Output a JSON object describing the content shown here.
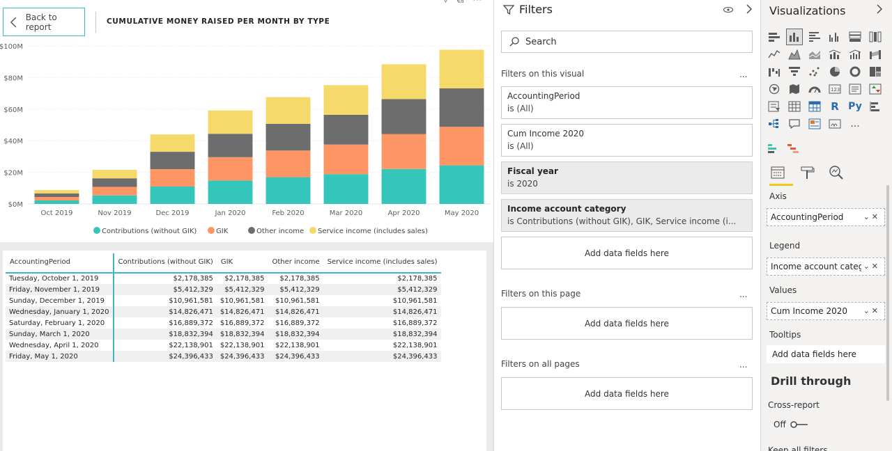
{
  "report": {
    "back_label": "Back to report",
    "chart_title": "CUMULATIVE MONEY RAISED PER MONTH BY TYPE"
  },
  "chart_data": {
    "type": "bar",
    "stacked": true,
    "title": "CUMULATIVE MONEY RAISED PER MONTH BY TYPE",
    "categories": [
      "Oct 2019",
      "Nov 2019",
      "Dec 2019",
      "Jan 2020",
      "Feb 2020",
      "Mar 2020",
      "Apr 2020",
      "May 2020"
    ],
    "y_ticks": [
      "$0M",
      "$20M",
      "$40M",
      "$60M",
      "$80M",
      "$100M"
    ],
    "ylim": [
      0,
      100
    ],
    "series": [
      {
        "name": "Contributions (without GIK)",
        "color": "#34c6bb",
        "values": [
          2.2,
          5.4,
          11.0,
          14.8,
          16.9,
          18.8,
          22.1,
          24.4
        ]
      },
      {
        "name": "GIK",
        "color": "#fd9564",
        "values": [
          2.2,
          5.4,
          11.0,
          14.8,
          16.9,
          18.8,
          22.1,
          24.4
        ]
      },
      {
        "name": "Other income",
        "color": "#6d6d6d",
        "values": [
          2.2,
          5.4,
          11.0,
          14.8,
          16.9,
          18.8,
          22.1,
          24.4
        ]
      },
      {
        "name": "Service income (includes sales)",
        "color": "#f5d96b",
        "values": [
          2.2,
          5.4,
          11.0,
          14.8,
          16.9,
          18.8,
          22.1,
          24.4
        ]
      }
    ],
    "legend_position": "bottom",
    "grid": true
  },
  "table": {
    "headers": [
      "AccountingPeriod",
      "Contributions (without GIK)",
      "GIK",
      "Other income",
      "Service income (includes sales)"
    ],
    "rows": [
      [
        "Tuesday, October 1, 2019",
        "$2,178,385",
        "$2,178,385",
        "$2,178,385",
        "$2,178,385"
      ],
      [
        "Friday, November 1, 2019",
        "$5,412,329",
        "$5,412,329",
        "$5,412,329",
        "$5,412,329"
      ],
      [
        "Sunday, December 1, 2019",
        "$10,961,581",
        "$10,961,581",
        "$10,961,581",
        "$10,961,581"
      ],
      [
        "Wednesday, January 1, 2020",
        "$14,826,471",
        "$14,826,471",
        "$14,826,471",
        "$14,826,471"
      ],
      [
        "Saturday, February 1, 2020",
        "$16,889,372",
        "$16,889,372",
        "$16,889,372",
        "$16,889,372"
      ],
      [
        "Sunday, March 1, 2020",
        "$18,832,394",
        "$18,832,394",
        "$18,832,394",
        "$18,832,394"
      ],
      [
        "Wednesday, April 1, 2020",
        "$22,138,901",
        "$22,138,901",
        "$22,138,901",
        "$22,138,901"
      ],
      [
        "Friday, May 1, 2020",
        "$24,396,433",
        "$24,396,433",
        "$24,396,433",
        "$24,396,433"
      ]
    ]
  },
  "filters": {
    "title": "Filters",
    "search_placeholder": "Search",
    "on_visual_label": "Filters on this visual",
    "on_page_label": "Filters on this page",
    "on_all_pages_label": "Filters on all pages",
    "more": "...",
    "add_fields": "Add data fields here",
    "cards": [
      {
        "name": "AccountingPeriod",
        "condition": "is (All)"
      },
      {
        "name": "Cum Income 2020",
        "condition": "is (All)"
      },
      {
        "name": "Fiscal year",
        "condition": "is 2020"
      },
      {
        "name": "Income account category",
        "condition": "is Contributions (without GIK), GIK, Service income (i..."
      }
    ]
  },
  "viz": {
    "title": "Visualizations",
    "axis_label": "Axis",
    "axis_field": "AccountingPeriod",
    "legend_label": "Legend",
    "legend_field": "Income account category",
    "values_label": "Values",
    "values_field": "Cum Income 2020",
    "tooltips_label": "Tooltips",
    "tooltips_empty": "Add data fields here",
    "drill_title": "Drill through",
    "cross_report": "Cross-report",
    "toggle_state": "Off",
    "keep_filters": "Keep all filters",
    "r_icon": "R",
    "py_icon": "Py",
    "more_icon": "..."
  }
}
